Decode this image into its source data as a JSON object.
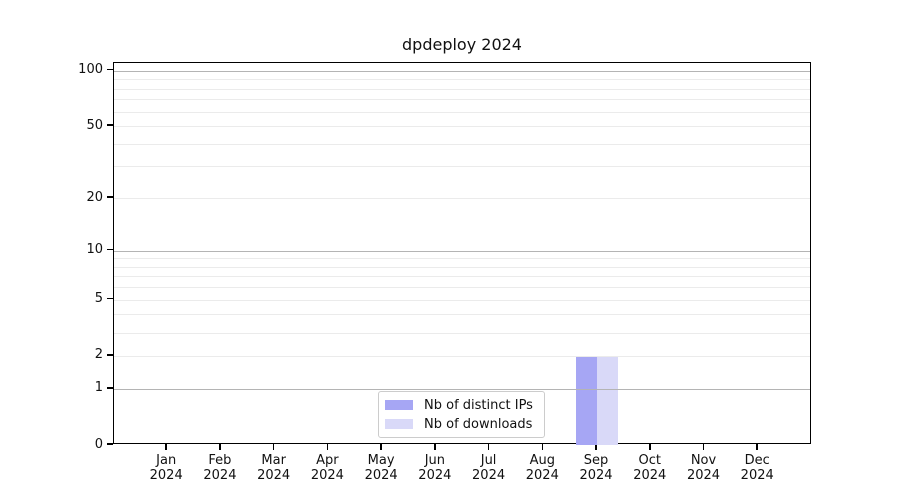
{
  "title": "dpdeploy 2024",
  "colors": {
    "distinct_ips_bar": "#a6a6f4",
    "downloads_bar": "#d9d9f8",
    "grid_major": "#b4b4b4",
    "grid_minor": "#ebebeb",
    "spine": "#000000",
    "text": "#111111",
    "legend_border": "#cccccc",
    "background": "#ffffff"
  },
  "chart_data": {
    "type": "bar",
    "title": "dpdeploy 2024",
    "categories": [
      "Jan 2024",
      "Feb 2024",
      "Mar 2024",
      "Apr 2024",
      "May 2024",
      "Jun 2024",
      "Jul 2024",
      "Aug 2024",
      "Sep 2024",
      "Oct 2024",
      "Nov 2024",
      "Dec 2024"
    ],
    "x_tick_months": [
      "Jan",
      "Feb",
      "Mar",
      "Apr",
      "May",
      "Jun",
      "Jul",
      "Aug",
      "Sep",
      "Oct",
      "Nov",
      "Dec"
    ],
    "x_tick_year": "2024",
    "series": [
      {
        "name": "Nb of distinct IPs",
        "color": "#a6a6f4",
        "values": [
          0,
          0,
          0,
          0,
          0,
          0,
          0,
          0,
          2,
          0,
          0,
          0
        ]
      },
      {
        "name": "Nb of downloads",
        "color": "#d9d9f8",
        "values": [
          0,
          0,
          0,
          0,
          0,
          0,
          0,
          0,
          2,
          0,
          0,
          0
        ]
      }
    ],
    "xlabel": "",
    "ylabel": "",
    "y_scale": "log1p",
    "ylim": [
      0,
      110
    ],
    "y_ticks": [
      0,
      1,
      2,
      5,
      10,
      20,
      50,
      100
    ],
    "grid_major_at": [
      1,
      10,
      100
    ],
    "grid_minor_at": [
      2,
      3,
      4,
      5,
      6,
      7,
      8,
      9,
      20,
      30,
      40,
      50,
      60,
      70,
      80,
      90
    ],
    "grid": "on",
    "legend_position": "lower center"
  }
}
